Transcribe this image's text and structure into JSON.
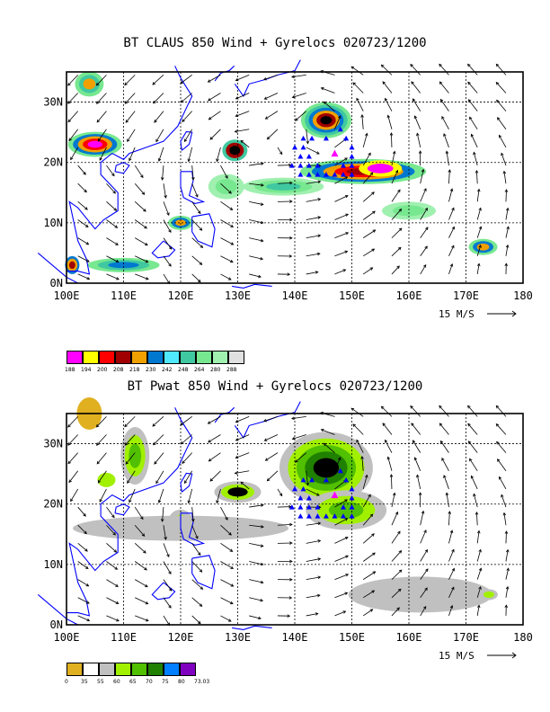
{
  "panel1": {
    "title": "BT CLAUS 850 Wind + Gyrelocs 020723/1200",
    "x_ticks": [
      "100E",
      "110E",
      "120E",
      "130E",
      "140E",
      "150E",
      "160E",
      "170E",
      "180"
    ],
    "y_ticks": [
      "0N",
      "10N",
      "20N",
      "30N"
    ],
    "vector_ref": "15 M/S",
    "legend": {
      "labels": [
        "188",
        "194",
        "200",
        "208",
        "218",
        "230",
        "242",
        "248",
        "264",
        "280",
        "288"
      ],
      "colors": [
        "#ff00ff",
        "#ffff00",
        "#ff0000",
        "#a00000",
        "#f0a000",
        "#0078d0",
        "#50e8ff",
        "#40c8a0",
        "#78e890",
        "#a0f0b0",
        "#e0e0e0"
      ]
    }
  },
  "panel2": {
    "title": "BT Pwat 850 Wind + Gyrelocs 020723/1200",
    "x_ticks": [
      "100E",
      "110E",
      "120E",
      "130E",
      "140E",
      "150E",
      "160E",
      "170E",
      "180"
    ],
    "y_ticks": [
      "0N",
      "10N",
      "20N",
      "30N"
    ],
    "vector_ref": "15 M/S",
    "legend": {
      "labels": [
        "0",
        "35",
        "55",
        "60",
        "65",
        "70",
        "75",
        "80",
        "73.03"
      ],
      "colors": [
        "#e0b020",
        "#ffffff",
        "#c0c0c0",
        "#a0f000",
        "#50c000",
        "#208000",
        "#0080ff",
        "#8000c0"
      ]
    }
  }
}
